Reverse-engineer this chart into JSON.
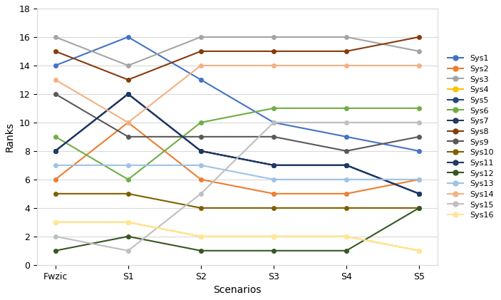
{
  "scenarios": [
    "Fwzic",
    "S1",
    "S2",
    "S3",
    "S4",
    "S5"
  ],
  "series": {
    "Sys1": [
      14,
      16,
      13,
      10,
      9,
      8
    ],
    "Sys2": [
      6,
      10,
      6,
      5,
      5,
      6
    ],
    "Sys3": [
      16,
      14,
      16,
      16,
      16,
      15
    ],
    "Sys4": [
      3,
      3,
      2,
      2,
      2,
      1
    ],
    "Sys5": [
      8,
      12,
      8,
      7,
      7,
      5
    ],
    "Sys6": [
      9,
      6,
      10,
      11,
      11,
      11
    ],
    "Sys7": [
      8,
      12,
      8,
      7,
      7,
      5
    ],
    "Sys8": [
      15,
      13,
      15,
      15,
      15,
      16
    ],
    "Sys9": [
      12,
      9,
      9,
      9,
      8,
      9
    ],
    "Sys10": [
      5,
      5,
      4,
      4,
      4,
      4
    ],
    "Sys11": [
      8,
      12,
      8,
      7,
      7,
      5
    ],
    "Sys12": [
      1,
      2,
      1,
      1,
      1,
      4
    ],
    "Sys13": [
      7,
      7,
      7,
      6,
      6,
      6
    ],
    "Sys14": [
      13,
      10,
      14,
      14,
      14,
      14
    ],
    "Sys15": [
      2,
      1,
      5,
      10,
      10,
      10
    ],
    "Sys16": [
      3,
      3,
      2,
      2,
      2,
      1
    ]
  },
  "colors": {
    "Sys1": "#4472C4",
    "Sys2": "#ED7D31",
    "Sys3": "#A5A5A5",
    "Sys4": "#FFC000",
    "Sys5": "#264478",
    "Sys6": "#70AD47",
    "Sys7": "#1F3864",
    "Sys8": "#843C0C",
    "Sys9": "#595959",
    "Sys10": "#7F6000",
    "Sys11": "#203864",
    "Sys12": "#375623",
    "Sys13": "#9DC3E6",
    "Sys14": "#F4B183",
    "Sys15": "#BFBFBF",
    "Sys16": "#FFE699"
  },
  "xlabel": "Scenarios",
  "ylabel": "Ranks",
  "ylim": [
    0,
    18
  ],
  "yticks": [
    0,
    2,
    4,
    6,
    8,
    10,
    12,
    14,
    16,
    18
  ],
  "figsize": [
    7.03,
    4.21
  ],
  "dpi": 100
}
